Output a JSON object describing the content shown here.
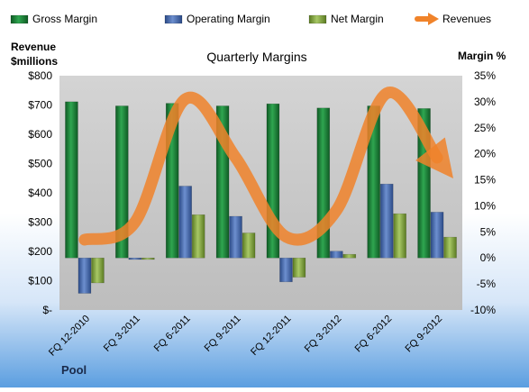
{
  "chart_data": {
    "type": "bar",
    "title": "Quarterly Margins",
    "footer_label": "Pool",
    "y_left_label": [
      "Revenue",
      "$millions"
    ],
    "y_right_label": "Margin %",
    "categories": [
      "FQ 12-2010",
      "FQ 3-2011",
      "FQ 6-2011",
      "FQ 9-2011",
      "FQ 12-2011",
      "FQ 3-2012",
      "FQ 6-2012",
      "FQ 9-2012"
    ],
    "left_axis": {
      "min": 0,
      "max": 800,
      "step": 100,
      "tick_labels": [
        "$-",
        "$100",
        "$200",
        "$300",
        "$400",
        "$500",
        "$600",
        "$700",
        "$800"
      ]
    },
    "right_axis": {
      "min": -10,
      "max": 35,
      "step": 5,
      "tick_labels": [
        "-10%",
        "-5%",
        "0%",
        "5%",
        "10%",
        "15%",
        "20%",
        "25%",
        "30%",
        "35%"
      ]
    },
    "series": [
      {
        "name": "Gross Margin",
        "kind": "bar",
        "axis": "right",
        "color": "#1e8a3c",
        "values": [
          30.0,
          29.2,
          29.7,
          29.2,
          29.6,
          28.8,
          29.2,
          28.7
        ]
      },
      {
        "name": "Operating Margin",
        "kind": "bar",
        "axis": "right",
        "color": "#4a6fb5",
        "values": [
          -6.8,
          -0.3,
          13.8,
          8.0,
          -4.6,
          1.3,
          14.2,
          8.8
        ]
      },
      {
        "name": "Net Margin",
        "kind": "bar",
        "axis": "right",
        "color": "#8aab3c",
        "values": [
          -4.8,
          -0.3,
          8.3,
          4.8,
          -3.7,
          0.7,
          8.5,
          4.0
        ]
      },
      {
        "name": "Revenues",
        "kind": "line",
        "axis": "left",
        "color": "#f0832a",
        "values": [
          240,
          300,
          720,
          520,
          250,
          340,
          740,
          520
        ]
      }
    ],
    "legend_position": "top",
    "grid": false
  }
}
